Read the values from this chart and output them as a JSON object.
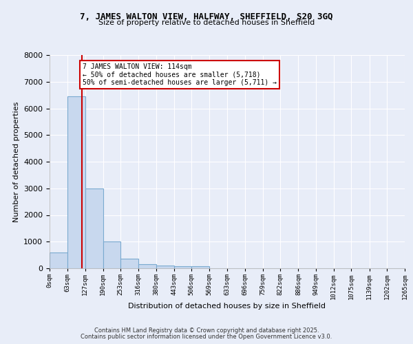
{
  "title1": "7, JAMES WALTON VIEW, HALFWAY, SHEFFIELD, S20 3GQ",
  "title2": "Size of property relative to detached houses in Sheffield",
  "xlabel": "Distribution of detached houses by size in Sheffield",
  "ylabel": "Number of detached properties",
  "bar_color": "#c8d8ee",
  "bar_edge_color": "#7aaad0",
  "background_color": "#e8edf8",
  "grid_color": "#ffffff",
  "bin_edges": [
    0,
    63,
    127,
    190,
    253,
    316,
    380,
    443,
    506,
    569,
    633,
    696,
    759,
    822,
    886,
    949,
    1012,
    1075,
    1139,
    1202,
    1265
  ],
  "bin_labels": [
    "0sqm",
    "63sqm",
    "127sqm",
    "190sqm",
    "253sqm",
    "316sqm",
    "380sqm",
    "443sqm",
    "506sqm",
    "569sqm",
    "633sqm",
    "696sqm",
    "759sqm",
    "822sqm",
    "886sqm",
    "949sqm",
    "1012sqm",
    "1075sqm",
    "1139sqm",
    "1202sqm",
    "1265sqm"
  ],
  "bar_heights": [
    600,
    6450,
    3000,
    1000,
    350,
    150,
    100,
    75,
    75,
    0,
    0,
    0,
    0,
    0,
    0,
    0,
    0,
    0,
    0,
    0
  ],
  "property_size": 114,
  "vline_color": "#cc0000",
  "annotation_line1": "7 JAMES WALTON VIEW: 114sqm",
  "annotation_line2": "← 50% of detached houses are smaller (5,718)",
  "annotation_line3": "50% of semi-detached houses are larger (5,711) →",
  "annotation_box_color": "#ffffff",
  "annotation_box_edge_color": "#cc0000",
  "ylim": [
    0,
    8000
  ],
  "yticks": [
    0,
    1000,
    2000,
    3000,
    4000,
    5000,
    6000,
    7000,
    8000
  ],
  "footer1": "Contains HM Land Registry data © Crown copyright and database right 2025.",
  "footer2": "Contains public sector information licensed under the Open Government Licence v3.0."
}
